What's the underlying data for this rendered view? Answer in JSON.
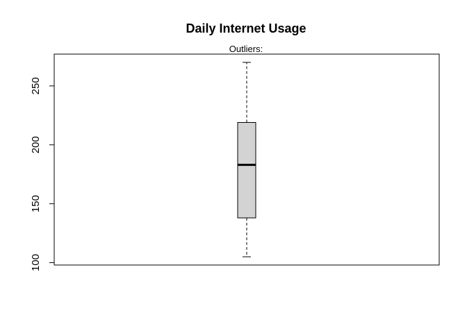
{
  "chart_data": {
    "type": "boxplot",
    "title": "Daily Internet Usage",
    "subtitle": "Outliers:",
    "xlabel": "",
    "ylabel": "",
    "ylim": [
      98,
      277
    ],
    "yticks": [
      100,
      150,
      200,
      250
    ],
    "grid": false,
    "box": {
      "min": 105,
      "q1": 138,
      "median": 183,
      "q3": 219,
      "max": 270,
      "outliers": []
    },
    "box_fill": "#d3d3d3",
    "line_color": "#000000"
  }
}
